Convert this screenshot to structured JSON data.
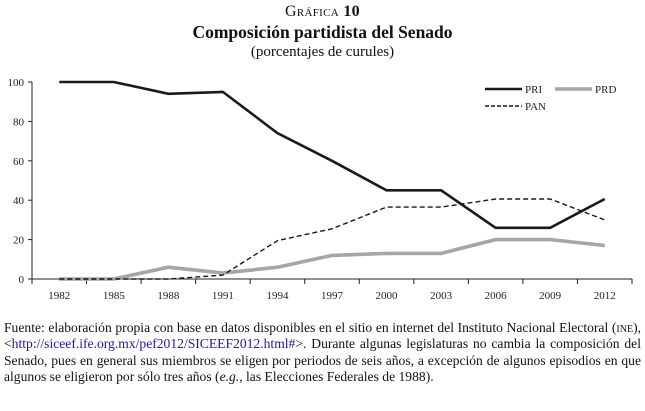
{
  "header": {
    "kicker_word": "Gráfica",
    "kicker_number": "10",
    "title": "Composición partidista del Senado",
    "subtitle": "(porcentajes de curules)"
  },
  "chart_data": {
    "type": "line",
    "title": "Composición partidista del Senado",
    "subtitle": "(porcentajes de curules)",
    "xlabel": "",
    "ylabel": "",
    "x": [
      "1982",
      "1985",
      "1988",
      "1991",
      "1994",
      "1997",
      "2000",
      "2003",
      "2006",
      "2009",
      "2012"
    ],
    "yticks": [
      0,
      20,
      40,
      60,
      80,
      100
    ],
    "ylim": [
      0,
      100
    ],
    "grid": false,
    "legend_position": "top-right",
    "series": [
      {
        "name": "PRI",
        "style": "solid-black",
        "color": "#1a1a1a",
        "values": [
          100,
          100,
          94,
          95,
          74,
          60,
          45,
          45,
          26,
          26,
          40.6
        ]
      },
      {
        "name": "PRD",
        "style": "solid-gray-thick",
        "color": "#a6a6a6",
        "values": [
          0,
          0,
          6,
          3,
          6,
          12,
          13,
          13,
          20,
          20,
          17
        ]
      },
      {
        "name": "PAN",
        "style": "dashed-black",
        "color": "#1a1a1a",
        "values": [
          0,
          0,
          0,
          2,
          19.5,
          25.5,
          36.5,
          36.5,
          40.6,
          40.6,
          30
        ]
      }
    ]
  },
  "source": {
    "prefix": "Fuente: elaboración propia con base en datos disponibles en el sitio en internet del Instituto Nacional Electoral (",
    "ine": "ine",
    "mid": "), <",
    "link": "http://siceef.ife.org.mx/pef2012/SICEEF2012.html#",
    "after_link": ">. Durante algunas legislaturas no cambia la composición del Senado, pues en general sus miembros se eligen por periodos de seis años, a excepción de algunos episodios en que algunos se eligieron por sólo tres años (",
    "eg": "e.g.",
    "suffix": ", las Elecciones Federales de 1988)."
  }
}
